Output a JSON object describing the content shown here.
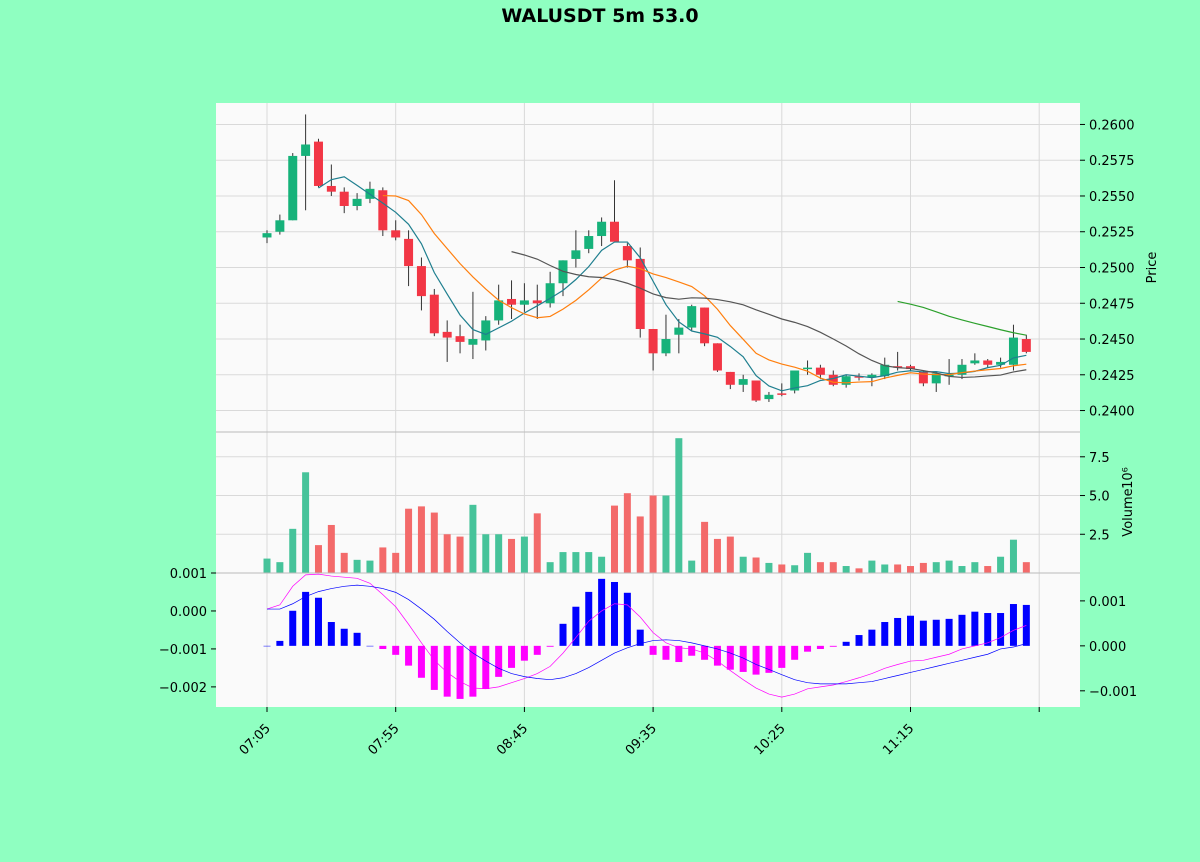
{
  "title": "WALUSDT 5m 53.0",
  "colors": {
    "page_bg": "#8fffc1",
    "axes_bg": "#fafafa",
    "grid": "#d9d9d9",
    "up": "#16b27a",
    "down": "#f23645",
    "vol_up": "#46c39a",
    "vol_down": "#f36a6a",
    "macd_pos": "#0000ff",
    "macd_neg": "#ff00ff",
    "macd_line": "#ff00ff",
    "signal_line": "#0000ff",
    "mav": [
      "#1f7f8f",
      "#ff7f0e",
      "#555555",
      "#2ca02c"
    ]
  },
  "chart_data": {
    "type": "candlestick",
    "title": "WALUSDT 5m 53.0",
    "x": [
      "07:05",
      "07:10",
      "07:15",
      "07:20",
      "07:25",
      "07:30",
      "07:35",
      "07:40",
      "07:45",
      "07:50",
      "07:55",
      "08:00",
      "08:05",
      "08:10",
      "08:15",
      "08:20",
      "08:25",
      "08:30",
      "08:35",
      "08:40",
      "08:45",
      "08:50",
      "08:55",
      "09:00",
      "09:05",
      "09:10",
      "09:15",
      "09:20",
      "09:25",
      "09:30",
      "09:35",
      "09:40",
      "09:45",
      "09:50",
      "09:55",
      "10:00",
      "10:05",
      "10:10",
      "10:15",
      "10:20",
      "10:25",
      "10:30",
      "10:35",
      "10:40",
      "10:45",
      "10:50",
      "10:55",
      "11:00",
      "11:05",
      "11:10",
      "11:15",
      "11:20",
      "11:25",
      "11:30",
      "11:35",
      "11:40",
      "11:45",
      "11:50",
      "11:55",
      "12:00"
    ],
    "x_ticks": [
      "07:05",
      "07:55",
      "08:45",
      "09:35",
      "10:25",
      "11:15",
      ""
    ],
    "open": [
      0.2521,
      0.2525,
      0.2533,
      0.2578,
      0.2588,
      0.2557,
      0.2553,
      0.2543,
      0.2548,
      0.2554,
      0.2526,
      0.252,
      0.2501,
      0.2481,
      0.2455,
      0.2452,
      0.2446,
      0.2449,
      0.2463,
      0.2478,
      0.2474,
      0.2477,
      0.2475,
      0.2489,
      0.2506,
      0.2513,
      0.2522,
      0.2532,
      0.2515,
      0.2506,
      0.2457,
      0.244,
      0.2453,
      0.2458,
      0.2472,
      0.2447,
      0.2427,
      0.2418,
      0.2421,
      0.2408,
      0.2412,
      0.2414,
      0.2429,
      0.243,
      0.2425,
      0.2418,
      0.2424,
      0.2423,
      0.2424,
      0.2431,
      0.2431,
      0.2427,
      0.2419,
      0.2424,
      0.2425,
      0.2433,
      0.2435,
      0.2432,
      0.2432,
      0.245
    ],
    "high": [
      0.2526,
      0.2537,
      0.258,
      0.2607,
      0.259,
      0.2572,
      0.2556,
      0.2552,
      0.256,
      0.2556,
      0.2533,
      0.2526,
      0.2507,
      0.2485,
      0.2463,
      0.246,
      0.2483,
      0.2466,
      0.2488,
      0.2491,
      0.2489,
      0.2488,
      0.2497,
      0.2505,
      0.2526,
      0.2526,
      0.2535,
      0.2561,
      0.2517,
      0.2514,
      0.2457,
      0.2467,
      0.2464,
      0.2474,
      0.2472,
      0.2447,
      0.2427,
      0.2425,
      0.2421,
      0.2413,
      0.2419,
      0.2428,
      0.2435,
      0.2432,
      0.2428,
      0.2425,
      0.2426,
      0.2426,
      0.2437,
      0.2441,
      0.2432,
      0.2428,
      0.2427,
      0.2436,
      0.2436,
      0.244,
      0.2436,
      0.2437,
      0.246,
      0.2453
    ],
    "low": [
      0.2517,
      0.2523,
      0.2533,
      0.254,
      0.2556,
      0.255,
      0.2538,
      0.254,
      0.2545,
      0.2522,
      0.2519,
      0.2487,
      0.247,
      0.2452,
      0.2434,
      0.244,
      0.2436,
      0.2442,
      0.246,
      0.2464,
      0.2469,
      0.2464,
      0.2472,
      0.248,
      0.25,
      0.251,
      0.2515,
      0.2518,
      0.25,
      0.2451,
      0.2428,
      0.2438,
      0.244,
      0.2456,
      0.2445,
      0.2427,
      0.2415,
      0.2413,
      0.2406,
      0.2406,
      0.241,
      0.2412,
      0.2425,
      0.2422,
      0.2417,
      0.2416,
      0.2421,
      0.2417,
      0.2422,
      0.2428,
      0.2428,
      0.2417,
      0.2413,
      0.2418,
      0.2422,
      0.2432,
      0.243,
      0.243,
      0.2428,
      0.244
    ],
    "close": [
      0.2524,
      0.2533,
      0.2578,
      0.2586,
      0.2557,
      0.2553,
      0.2543,
      0.2548,
      0.2555,
      0.2526,
      0.2521,
      0.2501,
      0.248,
      0.2454,
      0.2451,
      0.2448,
      0.245,
      0.2463,
      0.2477,
      0.2474,
      0.2477,
      0.2475,
      0.2489,
      0.2505,
      0.2512,
      0.2522,
      0.2532,
      0.2518,
      0.2505,
      0.2457,
      0.244,
      0.245,
      0.2458,
      0.2473,
      0.2447,
      0.2428,
      0.2418,
      0.2422,
      0.2407,
      0.2411,
      0.2411,
      0.2428,
      0.243,
      0.2425,
      0.2418,
      0.2424,
      0.2423,
      0.2425,
      0.2432,
      0.243,
      0.2429,
      0.2419,
      0.2426,
      0.2425,
      0.2432,
      0.2435,
      0.2432,
      0.2434,
      0.2451,
      0.2441
    ],
    "mav": [
      5,
      10,
      20,
      50
    ],
    "price_axis": {
      "label": "Price",
      "ylim": [
        0.2385,
        0.2615
      ],
      "ticks": [
        "0.2400",
        "0.2425",
        "0.2450",
        "0.2475",
        "0.2500",
        "0.2525",
        "0.2550",
        "0.2575",
        "0.2600"
      ]
    },
    "volume": [
      0.93,
      0.7,
      2.85,
      6.5,
      1.8,
      3.1,
      1.3,
      0.85,
      0.8,
      1.65,
      1.3,
      4.15,
      4.3,
      3.9,
      2.5,
      2.35,
      4.4,
      2.5,
      2.5,
      2.2,
      2.35,
      3.85,
      0.7,
      1.35,
      1.35,
      1.35,
      1.05,
      4.35,
      5.15,
      3.65,
      5.0,
      5.0,
      8.7,
      0.8,
      3.3,
      2.2,
      2.35,
      1.05,
      1.0,
      0.65,
      0.55,
      0.5,
      1.3,
      0.7,
      0.7,
      0.45,
      0.3,
      0.8,
      0.55,
      0.55,
      0.45,
      0.65,
      0.7,
      0.8,
      0.45,
      0.7,
      0.45,
      1.05,
      2.15,
      0.7
    ],
    "volume_axis": {
      "label": "Volume",
      "unit": "10⁶",
      "ylim": [
        0,
        9.1
      ],
      "ticks": [
        "2.5",
        "5.0",
        "7.5"
      ]
    },
    "macd_hist": [
      0,
      0.00011,
      0.00078,
      0.0012,
      0.00107,
      0.00053,
      0.00038,
      0.00029,
      0,
      -7e-05,
      -0.0002,
      -0.00044,
      -0.00071,
      -0.00098,
      -0.00113,
      -0.00118,
      -0.00113,
      -0.00096,
      -0.00069,
      -0.00049,
      -0.00033,
      -0.0002,
      -2e-05,
      0.00049,
      0.00087,
      0.0012,
      0.00149,
      0.00142,
      0.00118,
      0.00036,
      -0.0002,
      -0.00031,
      -0.00036,
      -0.00022,
      -0.00031,
      -0.00044,
      -0.00053,
      -0.00058,
      -0.00064,
      -0.0006,
      -0.00049,
      -0.00031,
      -0.00013,
      -7e-05,
      -2e-05,
      9e-05,
      0.00024,
      0.00036,
      0.00053,
      0.00062,
      0.00067,
      0.00056,
      0.00058,
      0.0006,
      0.00069,
      0.00076,
      0.00073,
      0.00073,
      0.00093,
      0.00091
    ],
    "macd_hist_axis": {
      "ylim": [
        -0.00136,
        0.00162
      ],
      "ticks": [
        "−0.001",
        "0.000",
        "0.001"
      ]
    },
    "macd": [
      5e-05,
      0.00016,
      0.00065,
      0.00095,
      0.00097,
      0.00092,
      0.00089,
      0.00086,
      0.00073,
      0.00043,
      0.00011,
      -0.00035,
      -0.00084,
      -0.0013,
      -0.00162,
      -0.00186,
      -0.00203,
      -0.00205,
      -0.002,
      -0.00189,
      -0.00178,
      -0.00165,
      -0.00146,
      -0.00111,
      -0.0007,
      -0.00027,
      0,
      0.00019,
      0.00016,
      -0.00016,
      -0.00057,
      -0.00084,
      -0.00097,
      -0.001,
      -0.00111,
      -0.00132,
      -0.00157,
      -0.00181,
      -0.00203,
      -0.00219,
      -0.00227,
      -0.00219,
      -0.00205,
      -0.002,
      -0.00195,
      -0.00186,
      -0.00176,
      -0.00165,
      -0.00151,
      -0.00141,
      -0.00132,
      -0.0013,
      -0.00122,
      -0.00114,
      -0.001,
      -0.00092,
      -0.00084,
      -0.0007,
      -0.00051,
      -0.00038
    ],
    "signal": [
      5e-05,
      5e-05,
      0.00019,
      0.00038,
      0.00051,
      0.00059,
      0.00065,
      0.00068,
      0.00065,
      0.00059,
      0.00049,
      0.0003,
      5e-05,
      -0.00022,
      -0.00054,
      -0.00084,
      -0.00111,
      -0.00132,
      -0.00151,
      -0.00165,
      -0.00173,
      -0.00178,
      -0.00181,
      -0.00176,
      -0.00165,
      -0.00149,
      -0.0013,
      -0.00111,
      -0.00097,
      -0.00086,
      -0.00078,
      -0.00076,
      -0.00078,
      -0.00084,
      -0.00092,
      -0.001,
      -0.00111,
      -0.00124,
      -0.00141,
      -0.00154,
      -0.00168,
      -0.00181,
      -0.00189,
      -0.00192,
      -0.00192,
      -0.00192,
      -0.00189,
      -0.00186,
      -0.00178,
      -0.0017,
      -0.00162,
      -0.00154,
      -0.00146,
      -0.00138,
      -0.0013,
      -0.00122,
      -0.00114,
      -0.001,
      -0.00095,
      -0.00086
    ],
    "macd_line_axis": {
      "ylim": [
        -0.00253,
        0.001
      ],
      "ticks": [
        "−0.002",
        "−0.001",
        "0.000",
        "0.001"
      ]
    },
    "grid": true
  }
}
